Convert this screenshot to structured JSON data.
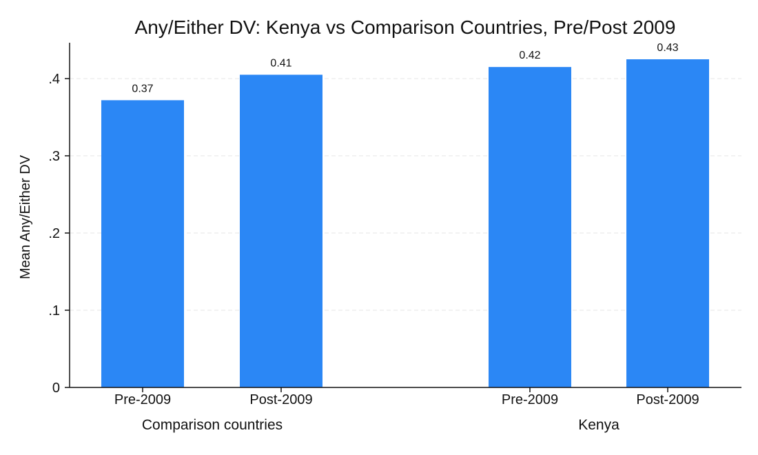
{
  "chart_data": {
    "type": "bar",
    "title": "Any/Either DV: Kenya vs Comparison Countries, Pre/Post 2009",
    "ylabel": "Mean Any/Either DV",
    "xlabel": "",
    "ylim": [
      0,
      0.45
    ],
    "yticks": [
      {
        "value": 0,
        "label": "0"
      },
      {
        "value": 0.1,
        "label": ".1"
      },
      {
        "value": 0.2,
        "label": ".2"
      },
      {
        "value": 0.3,
        "label": ".3"
      },
      {
        "value": 0.4,
        "label": ".4"
      }
    ],
    "grid": true,
    "bar_color": "#2b87f5",
    "groups": [
      {
        "label": "Comparison countries",
        "bars": [
          {
            "category": "Pre-2009",
            "value": 0.372,
            "value_label": "0.37"
          },
          {
            "category": "Post-2009",
            "value": 0.405,
            "value_label": "0.41"
          }
        ]
      },
      {
        "label": "Kenya",
        "bars": [
          {
            "category": "Pre-2009",
            "value": 0.415,
            "value_label": "0.42"
          },
          {
            "category": "Post-2009",
            "value": 0.425,
            "value_label": "0.43"
          }
        ]
      }
    ]
  }
}
